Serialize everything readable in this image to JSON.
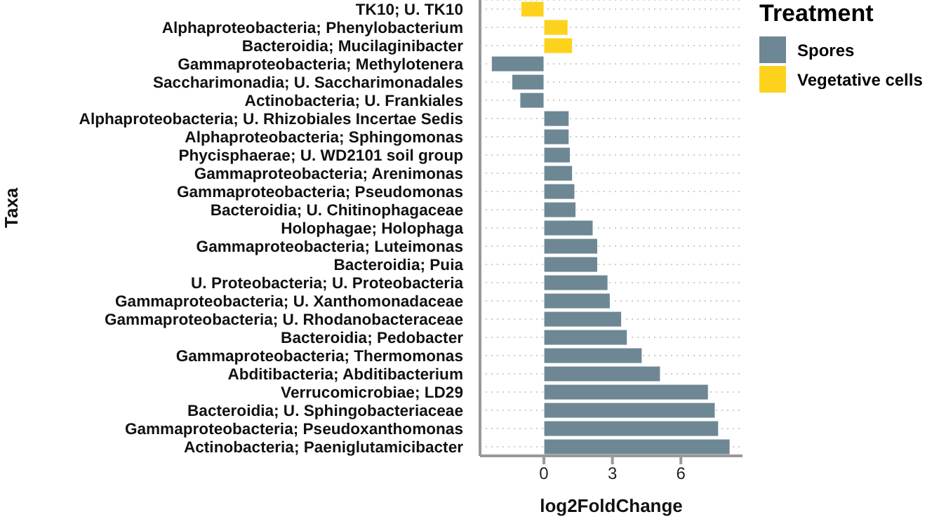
{
  "chart_data": {
    "type": "bar",
    "orientation": "horizontal",
    "stacked": true,
    "xlabel": "log2FoldChange",
    "ylabel": "Taxa",
    "legend_title": "Treatment",
    "legend": "right",
    "grid": "y",
    "categories": [
      "TK10; U. TK10",
      "Alphaproteobacteria; Phenylobacterium",
      "Bacteroidia; Mucilaginibacter",
      "Gammaproteobacteria; Methylotenera",
      "Saccharimonadia; U. Saccharimonadales",
      "Actinobacteria; U. Frankiales",
      "Alphaproteobacteria; U. Rhizobiales Incertae Sedis",
      "Alphaproteobacteria; Sphingomonas",
      "Phycisphaerae; U. WD2101 soil group",
      "Gammaproteobacteria; Arenimonas",
      "Gammaproteobacteria; Pseudomonas",
      "Bacteroidia; U. Chitinophagaceae",
      "Holophagae; Holophaga",
      "Gammaproteobacteria; Luteimonas",
      "Bacteroidia; Puia",
      "U. Proteobacteria; U. Proteobacteria",
      "Gammaproteobacteria; U. Xanthomonadaceae",
      "Gammaproteobacteria; U. Rhodanobacteraceae",
      "Bacteroidia; Pedobacter",
      "Gammaproteobacteria; Thermomonas",
      "Abditibacteria; Abditibacterium",
      "Verrucomicrobiae; LD29",
      "Bacteroidia; U. Sphingobacteriaceae",
      "Gammaproteobacteria; Pseudoxanthomonas",
      "Actinobacteria; Paeniglutamicibacter"
    ],
    "series": [
      {
        "name": "Spores",
        "color": "#6e8794",
        "values": [
          null,
          null,
          null,
          -2.3,
          -1.4,
          -1.05,
          1.1,
          1.1,
          1.15,
          1.25,
          1.35,
          1.4,
          2.15,
          2.35,
          2.35,
          2.8,
          2.9,
          3.4,
          3.65,
          4.3,
          5.1,
          7.2,
          7.5,
          7.65,
          8.15
        ]
      },
      {
        "name": "Vegetative cells",
        "color": "#fdd21c",
        "values": [
          -1.0,
          1.05,
          1.25,
          null,
          null,
          null,
          null,
          null,
          null,
          null,
          null,
          null,
          null,
          null,
          null,
          null,
          null,
          null,
          null,
          null,
          null,
          null,
          null,
          null,
          null
        ]
      }
    ],
    "xlim": [
      -2.8,
      8.7
    ],
    "xticks": [
      0,
      3,
      6
    ]
  }
}
